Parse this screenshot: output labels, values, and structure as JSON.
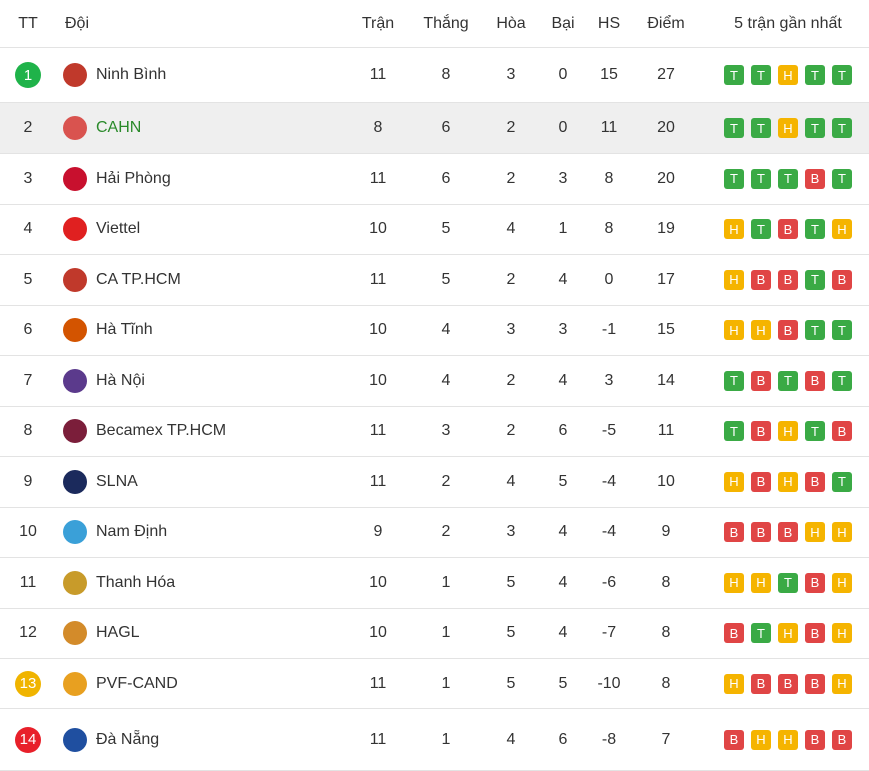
{
  "header": {
    "columns": [
      "TT",
      "Đội",
      "Trận",
      "Thắng",
      "Hòa",
      "Bại",
      "HS",
      "Điểm",
      "5 trận gần nhất"
    ]
  },
  "form_colors": {
    "T": "#3aaa45",
    "H": "#f5b400",
    "B": "#e04545"
  },
  "rows": [
    {
      "rank": 1,
      "rank_color": "#1fb34a",
      "team": "Ninh Bình",
      "played": 11,
      "won": 8,
      "drawn": 3,
      "lost": 0,
      "gd": 15,
      "points": 27,
      "form": [
        "T",
        "T",
        "H",
        "T",
        "T"
      ]
    },
    {
      "rank": 2,
      "background": "#efefef",
      "team_color": "#2a8a2a",
      "team": "CAHN",
      "played": 8,
      "won": 6,
      "drawn": 2,
      "lost": 0,
      "gd": 11,
      "points": 20,
      "form": [
        "T",
        "T",
        "H",
        "T",
        "T"
      ]
    },
    {
      "rank": 3,
      "team": "Hải Phòng",
      "played": 11,
      "won": 6,
      "drawn": 2,
      "lost": 3,
      "gd": 8,
      "points": 20,
      "form": [
        "T",
        "T",
        "T",
        "B",
        "T"
      ]
    },
    {
      "rank": 4,
      "team": "Viettel",
      "played": 10,
      "won": 5,
      "drawn": 4,
      "lost": 1,
      "gd": 8,
      "points": 19,
      "form": [
        "H",
        "T",
        "B",
        "T",
        "H"
      ]
    },
    {
      "rank": 5,
      "team": "CA TP.HCM",
      "played": 11,
      "won": 5,
      "drawn": 2,
      "lost": 4,
      "gd": 0,
      "points": 17,
      "form": [
        "H",
        "B",
        "B",
        "T",
        "B"
      ]
    },
    {
      "rank": 6,
      "team": "Hà Tĩnh",
      "played": 10,
      "won": 4,
      "drawn": 3,
      "lost": 3,
      "gd": -1,
      "points": 15,
      "form": [
        "H",
        "H",
        "B",
        "T",
        "T"
      ]
    },
    {
      "rank": 7,
      "team": "Hà Nội",
      "played": 10,
      "won": 4,
      "drawn": 2,
      "lost": 4,
      "gd": 3,
      "points": 14,
      "form": [
        "T",
        "B",
        "T",
        "B",
        "T"
      ]
    },
    {
      "rank": 8,
      "team": "Becamex TP.HCM",
      "played": 11,
      "won": 3,
      "drawn": 2,
      "lost": 6,
      "gd": -5,
      "points": 11,
      "form": [
        "T",
        "B",
        "H",
        "T",
        "B"
      ]
    },
    {
      "rank": 9,
      "team": "SLNA",
      "played": 11,
      "won": 2,
      "drawn": 4,
      "lost": 5,
      "gd": -4,
      "points": 10,
      "form": [
        "H",
        "B",
        "H",
        "B",
        "T"
      ]
    },
    {
      "rank": 10,
      "team": "Nam Định",
      "played": 9,
      "won": 2,
      "drawn": 3,
      "lost": 4,
      "gd": -4,
      "points": 9,
      "form": [
        "B",
        "B",
        "B",
        "H",
        "H"
      ]
    },
    {
      "rank": 11,
      "team": "Thanh Hóa",
      "played": 10,
      "won": 1,
      "drawn": 5,
      "lost": 4,
      "gd": -6,
      "points": 8,
      "form": [
        "H",
        "H",
        "T",
        "B",
        "H"
      ]
    },
    {
      "rank": 12,
      "team": "HAGL",
      "played": 10,
      "won": 1,
      "drawn": 5,
      "lost": 4,
      "gd": -7,
      "points": 8,
      "form": [
        "B",
        "T",
        "H",
        "B",
        "H"
      ]
    },
    {
      "rank": 13,
      "rank_color": "#f0b400",
      "team": "PVF-CAND",
      "played": 11,
      "won": 1,
      "drawn": 5,
      "lost": 5,
      "gd": -10,
      "points": 8,
      "form": [
        "H",
        "B",
        "B",
        "B",
        "H"
      ]
    },
    {
      "rank": 14,
      "rank_color": "#e8202a",
      "team": "Đà Nẵng",
      "played": 11,
      "won": 1,
      "drawn": 4,
      "lost": 6,
      "gd": -8,
      "points": 7,
      "form": [
        "B",
        "H",
        "H",
        "B",
        "B"
      ]
    }
  ]
}
